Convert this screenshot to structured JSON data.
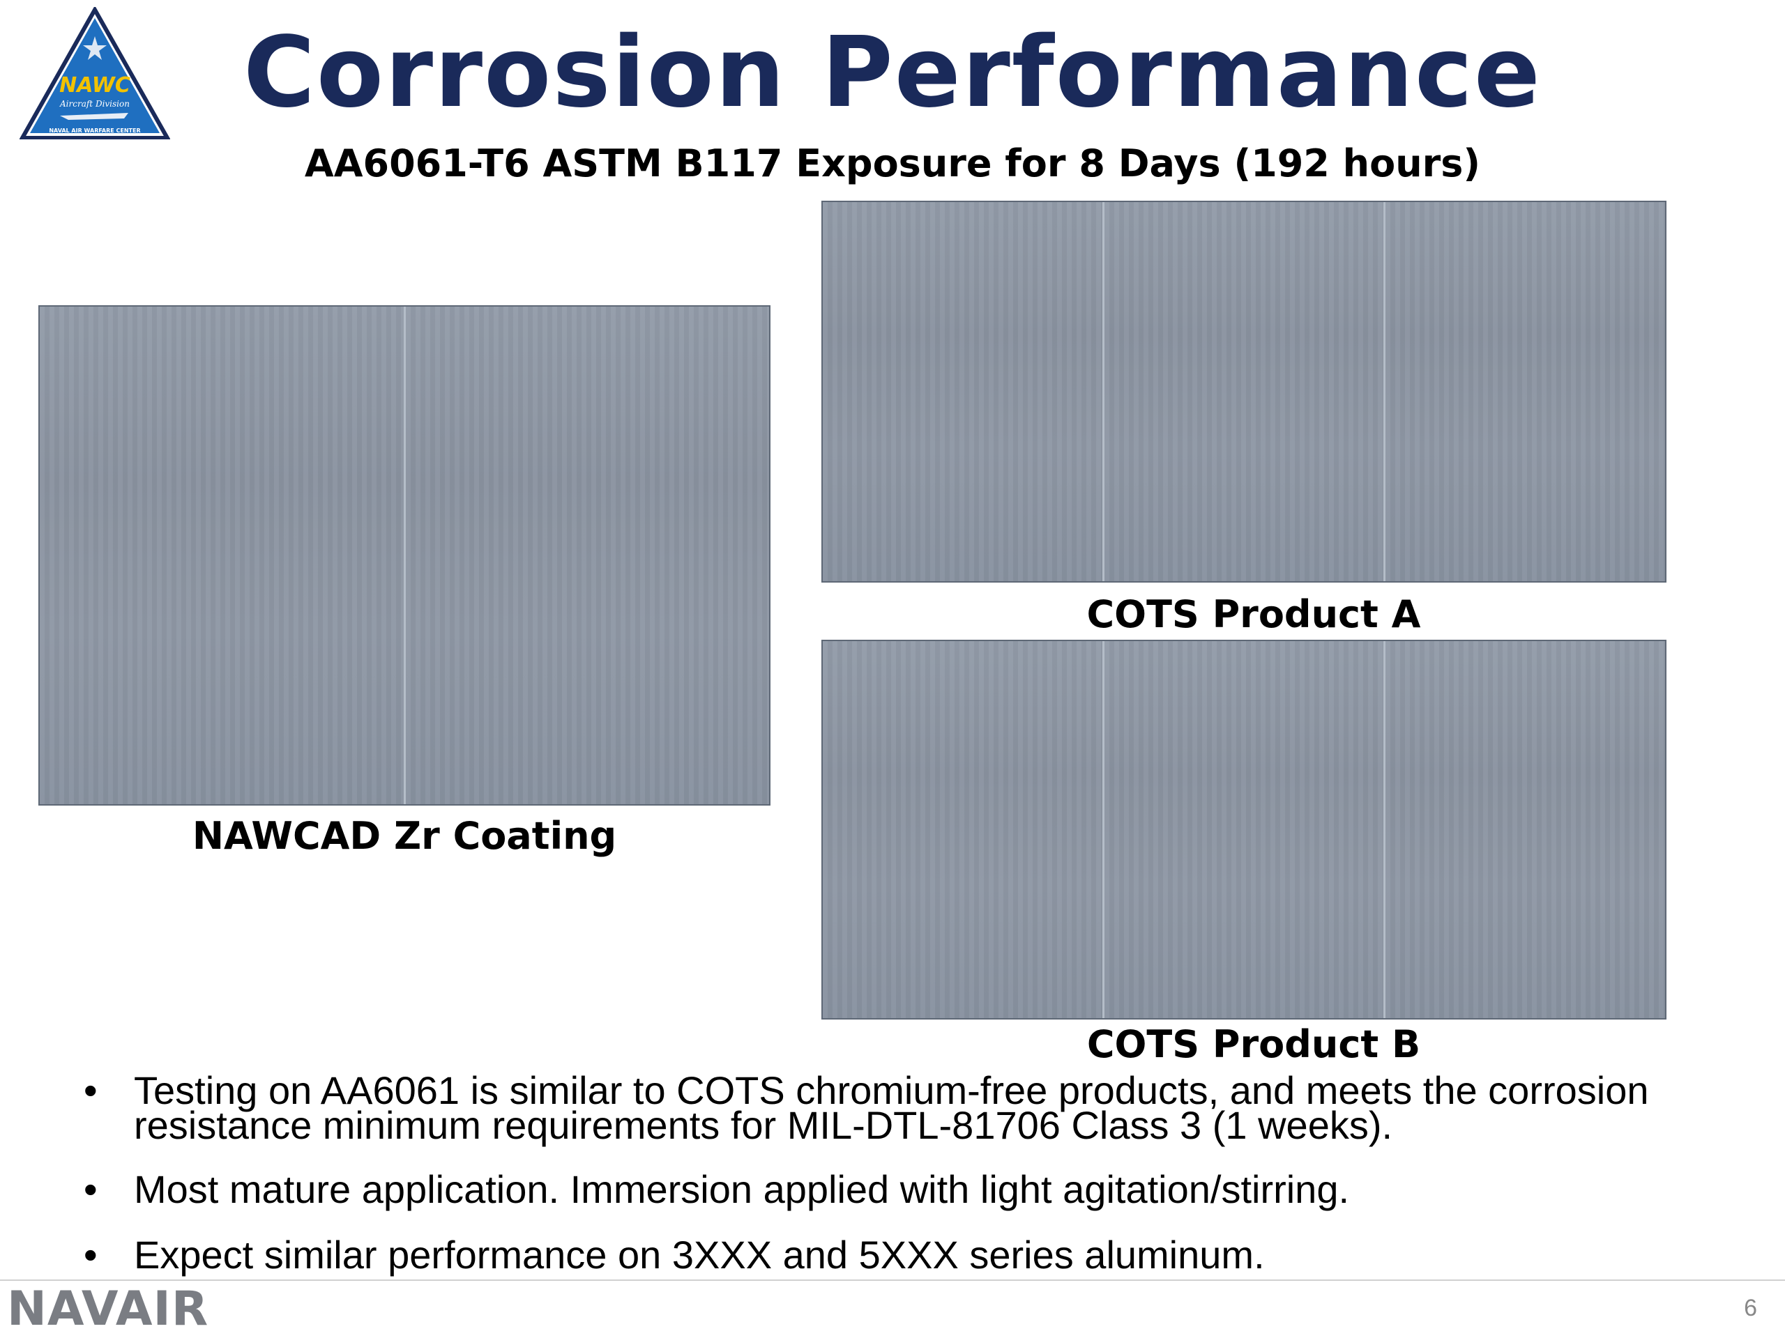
{
  "logo": {
    "text_main": "NAWC",
    "text_division": "Aircraft Division",
    "text_center": "NAVAL AIR WARFARE CENTER",
    "colors": {
      "border": "#1a2a5a",
      "fill": "#1f6fc0",
      "text": "#f2c200"
    }
  },
  "slide": {
    "title": "Corrosion Performance",
    "subtitle": "AA6061-T6 ASTM B117 Exposure for 8 Days (192 hours)"
  },
  "panels": {
    "zr": {
      "caption": "NAWCAD Zr Coating"
    },
    "a": {
      "caption": "COTS Product A"
    },
    "b": {
      "caption": "COTS Product B"
    }
  },
  "bullets": [
    "Testing on AA6061 is similar to COTS chromium-free products, and meets the corrosion resistance minimum requirements for MIL-DTL-81706 Class 3 (1 weeks).",
    "Most mature application. Immersion applied with light agitation/stirring.",
    "Expect similar performance on 3XXX and 5XXX series aluminum."
  ],
  "footer": {
    "brand": "NAVAIR",
    "page_number": "6"
  },
  "colors": {
    "title": "#1a2a5a",
    "panel": "#8d96a4",
    "brand": "#7a7d83"
  }
}
